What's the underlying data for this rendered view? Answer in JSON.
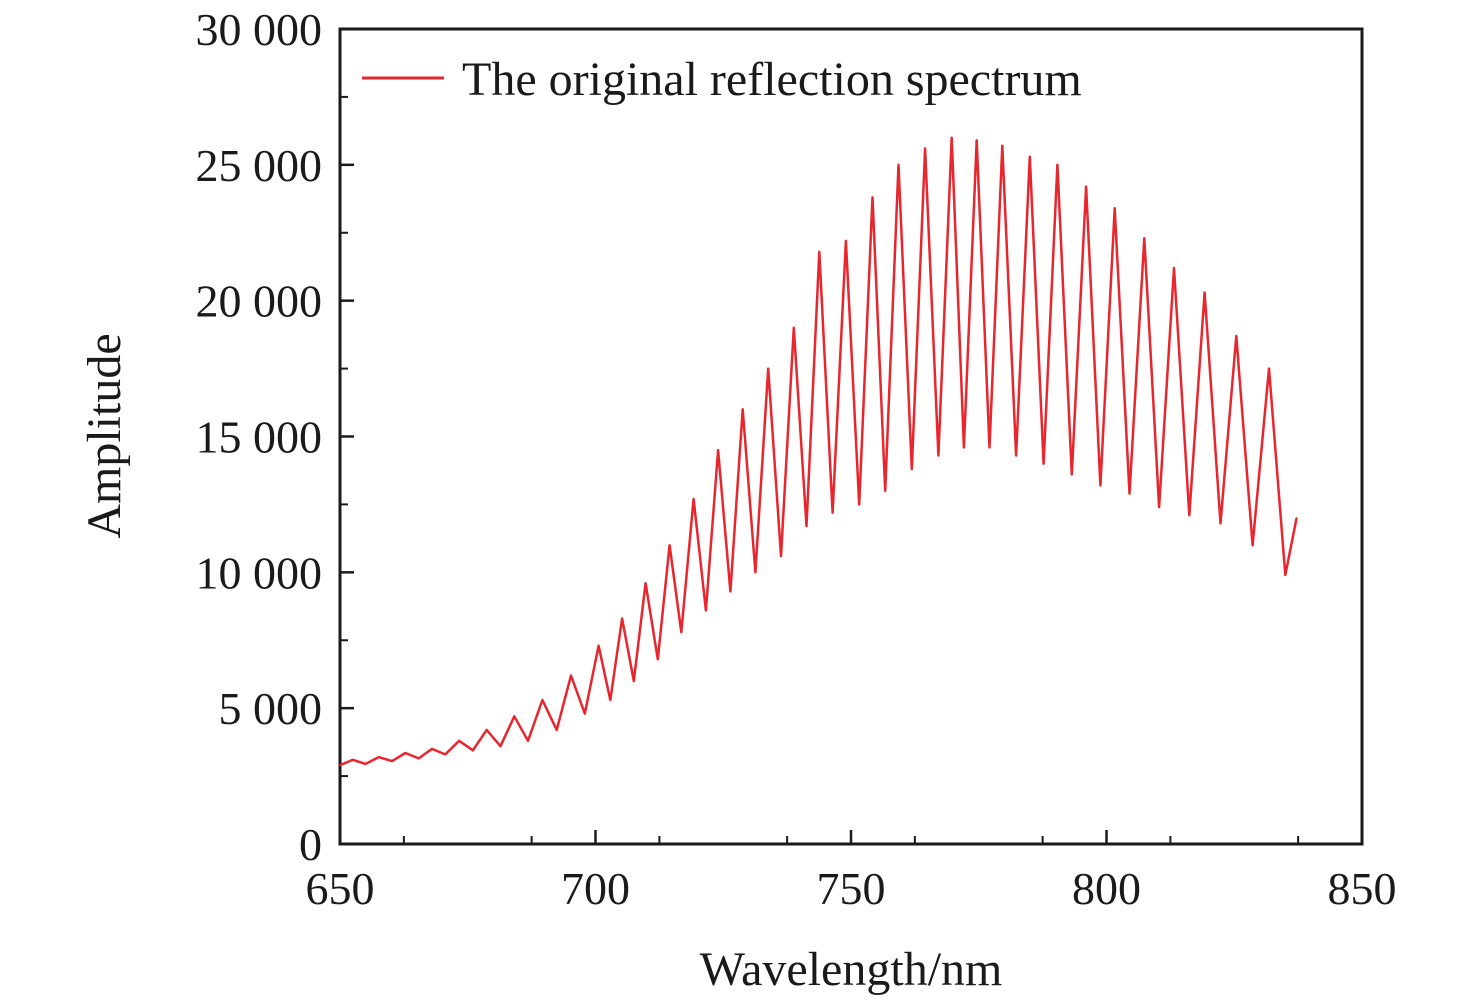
{
  "chart_data": {
    "type": "line",
    "title": "",
    "xlabel": "Wavelength/nm",
    "ylabel": "Amplitude",
    "xlim": [
      650,
      850
    ],
    "ylim": [
      0,
      30000
    ],
    "x_ticks": [
      650,
      700,
      750,
      800,
      850
    ],
    "y_ticks": [
      0,
      5000,
      10000,
      15000,
      20000,
      25000,
      30000
    ],
    "x_tick_labels": [
      "650",
      "700",
      "750",
      "800",
      "850"
    ],
    "y_tick_labels": [
      "0",
      "5 000",
      "10 000",
      "15 000",
      "20 000",
      "25 000",
      "30 000"
    ],
    "grid": false,
    "legend_position": "top-left",
    "series": [
      {
        "name": "The original reflection spectrum",
        "color": "#e8262d",
        "x": [
          650,
          652.5,
          655,
          657.6,
          660.2,
          662.8,
          665.4,
          668,
          670.6,
          673.3,
          676,
          678.7,
          681.4,
          684.1,
          686.8,
          689.6,
          692.4,
          695.2,
          697.9,
          700.6,
          702.9,
          705.2,
          707.5,
          709.8,
          712.2,
          714.5,
          716.8,
          719.2,
          721.6,
          724,
          726.4,
          728.8,
          731.3,
          733.8,
          736.3,
          738.8,
          741.3,
          743.8,
          746.4,
          749,
          751.6,
          754.2,
          756.7,
          759.3,
          761.9,
          764.5,
          767.1,
          769.7,
          772.1,
          774.6,
          777.1,
          779.6,
          782.3,
          785,
          787.7,
          790.4,
          793.2,
          796,
          798.8,
          801.6,
          804.5,
          807.4,
          810.3,
          813.2,
          816.2,
          819.2,
          822.3,
          825.4,
          828.6,
          831.8,
          835,
          837.2
        ],
        "y": [
          2900,
          3100,
          2950,
          3200,
          3050,
          3350,
          3150,
          3500,
          3300,
          3800,
          3450,
          4200,
          3600,
          4700,
          3800,
          5300,
          4200,
          6200,
          4800,
          7300,
          5300,
          8300,
          6000,
          9600,
          6800,
          11000,
          7800,
          12700,
          8600,
          14500,
          9300,
          16000,
          10000,
          17500,
          10600,
          19000,
          11700,
          21800,
          12200,
          22200,
          12500,
          23800,
          13000,
          25000,
          13800,
          25600,
          14300,
          26000,
          14600,
          25900,
          14600,
          25700,
          14300,
          25300,
          14000,
          25000,
          13600,
          24200,
          13200,
          23400,
          12900,
          22300,
          12400,
          21200,
          12100,
          20300,
          11800,
          18700,
          11000,
          17500,
          9900,
          12000
        ]
      }
    ]
  }
}
